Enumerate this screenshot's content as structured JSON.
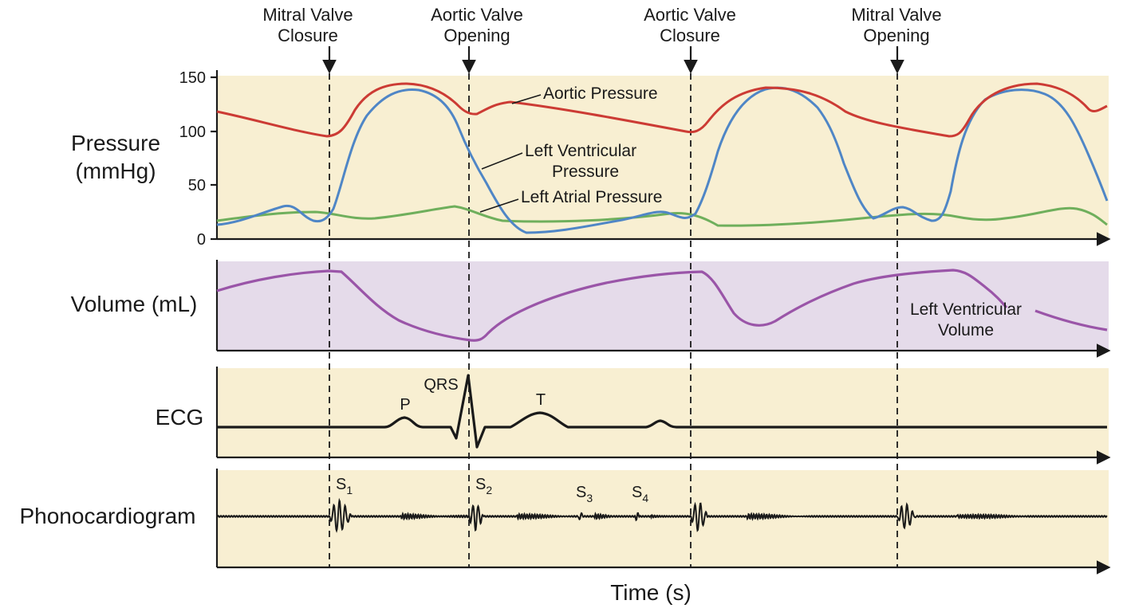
{
  "events": [
    {
      "id": "mitral-valve-closure",
      "line1": "Mitral Valve",
      "line2": "Closure"
    },
    {
      "id": "aortic-valve-opening",
      "line1": "Aortic Valve",
      "line2": "Opening"
    },
    {
      "id": "aortic-valve-closure",
      "line1": "Aortic Valve",
      "line2": "Closure"
    },
    {
      "id": "mitral-valve-opening",
      "line1": "Mitral Valve",
      "line2": "Opening"
    }
  ],
  "pressure_panel": {
    "ylabel_line1": "Pressure",
    "ylabel_line2": "(mmHg)",
    "ticks": [
      "150",
      "100",
      "50",
      "0"
    ],
    "aortic_label": "Aortic Pressure",
    "lv_label_line1": "Left Ventricular",
    "lv_label_line2": "Pressure",
    "la_label": "Left Atrial Pressure"
  },
  "volume_panel": {
    "ylabel": "Volume (mL)",
    "curve_label_line1": "Left Ventricular",
    "curve_label_line2": "Volume"
  },
  "ecg_panel": {
    "ylabel": "ECG",
    "p_label": "P",
    "qrs_label": "QRS",
    "t_label": "T"
  },
  "phono_panel": {
    "ylabel": "Phonocardiogram",
    "s1": {
      "letter": "S",
      "sub": "1"
    },
    "s2": {
      "letter": "S",
      "sub": "2"
    },
    "s3": {
      "letter": "S",
      "sub": "3"
    },
    "s4": {
      "letter": "S",
      "sub": "4"
    }
  },
  "xlabel": "Time (s)",
  "colors": {
    "panel_bg": "#f8efd2",
    "volume_bg": "#e5dbea",
    "aortic": "#cc3b34",
    "lv_pressure": "#4f86c6",
    "la_pressure": "#6faf5c",
    "lv_volume": "#9a55a8",
    "ink": "#1a1a1a"
  }
}
